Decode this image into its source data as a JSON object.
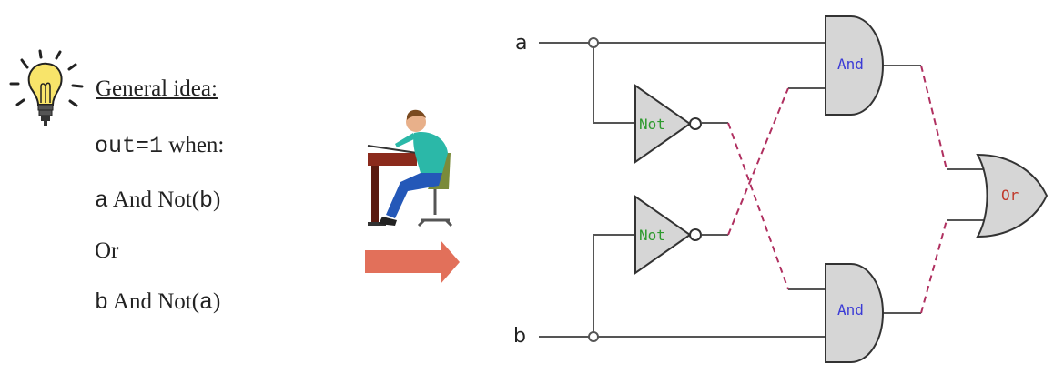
{
  "idea": {
    "title": "General idea:",
    "line1_mono": "out=1",
    "line1_text": " when:",
    "line2_a": "a",
    "line2_text": " And Not(",
    "line2_b": "b",
    "line2_close": ")",
    "line3": "Or",
    "line4_b": "b",
    "line4_text": " And Not(",
    "line4_a": "a",
    "line4_close": ")"
  },
  "circuit": {
    "input_a": "a",
    "input_b": "b",
    "not_top": "Not",
    "not_bottom": "Not",
    "and_top": "And",
    "and_bottom": "And",
    "or_gate": "Or"
  },
  "colors": {
    "and_label": "#3b3bd6",
    "not_label": "#2e9a2e",
    "or_label": "#c0392b",
    "gate_fill": "#d6d6d6",
    "dashed_wire": "#b03060",
    "arrow": "#e2705a"
  },
  "icons": {
    "bulb": "lightbulb-icon",
    "person": "person-at-desk-icon",
    "arrow": "right-arrow-icon"
  }
}
